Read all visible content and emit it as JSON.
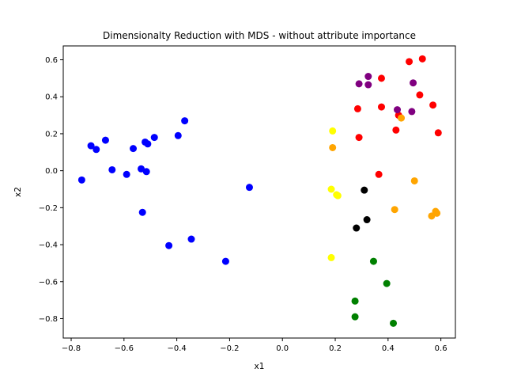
{
  "chart_data": {
    "type": "scatter",
    "title": "Dimensionalty Reduction with MDS - without attribute importance",
    "xlabel": "x1",
    "ylabel": "x2",
    "xlim": [
      -0.83,
      0.655
    ],
    "ylim": [
      -0.905,
      0.675
    ],
    "xticks": [
      -0.8,
      -0.6,
      -0.4,
      -0.2,
      0.0,
      0.2,
      0.4,
      0.6
    ],
    "yticks": [
      -0.8,
      -0.6,
      -0.4,
      -0.2,
      0.0,
      0.2,
      0.4,
      0.6
    ],
    "xtick_labels": [
      "−0.8",
      "−0.6",
      "−0.4",
      "−0.2",
      "0.0",
      "0.2",
      "0.4",
      "0.6"
    ],
    "ytick_labels": [
      "−0.8",
      "−0.6",
      "−0.4",
      "−0.2",
      "0.0",
      "0.2",
      "0.4",
      "0.6"
    ],
    "grid": false,
    "legend": "none",
    "series": [
      {
        "color": "#0000ff",
        "points": [
          [
            -0.76,
            -0.05
          ],
          [
            -0.725,
            0.135
          ],
          [
            -0.705,
            0.115
          ],
          [
            -0.67,
            0.165
          ],
          [
            -0.645,
            0.005
          ],
          [
            -0.59,
            -0.02
          ],
          [
            -0.565,
            0.12
          ],
          [
            -0.535,
            0.01
          ],
          [
            -0.52,
            0.155
          ],
          [
            -0.51,
            0.145
          ],
          [
            -0.485,
            0.18
          ],
          [
            -0.515,
            -0.005
          ],
          [
            -0.53,
            -0.225
          ],
          [
            -0.395,
            0.19
          ],
          [
            -0.37,
            0.27
          ],
          [
            -0.345,
            -0.37
          ],
          [
            -0.43,
            -0.405
          ],
          [
            -0.215,
            -0.49
          ],
          [
            -0.125,
            -0.09
          ]
        ]
      },
      {
        "color": "#ff0000",
        "points": [
          [
            0.53,
            0.605
          ],
          [
            0.48,
            0.59
          ],
          [
            0.375,
            0.5
          ],
          [
            0.52,
            0.41
          ],
          [
            0.57,
            0.355
          ],
          [
            0.375,
            0.345
          ],
          [
            0.285,
            0.335
          ],
          [
            0.44,
            0.3
          ],
          [
            0.43,
            0.22
          ],
          [
            0.59,
            0.205
          ],
          [
            0.29,
            0.18
          ],
          [
            0.365,
            -0.02
          ]
        ]
      },
      {
        "color": "#800080",
        "points": [
          [
            0.325,
            0.51
          ],
          [
            0.29,
            0.47
          ],
          [
            0.325,
            0.465
          ],
          [
            0.495,
            0.475
          ],
          [
            0.435,
            0.33
          ],
          [
            0.49,
            0.32
          ]
        ]
      },
      {
        "color": "#ffa500",
        "points": [
          [
            0.45,
            0.285
          ],
          [
            0.19,
            0.125
          ],
          [
            0.5,
            -0.055
          ],
          [
            0.425,
            -0.21
          ],
          [
            0.58,
            -0.22
          ],
          [
            0.585,
            -0.23
          ],
          [
            0.565,
            -0.245
          ]
        ]
      },
      {
        "color": "#ffff00",
        "points": [
          [
            0.19,
            0.215
          ],
          [
            0.185,
            -0.1
          ],
          [
            0.205,
            -0.13
          ],
          [
            0.21,
            -0.135
          ],
          [
            0.185,
            -0.47
          ]
        ]
      },
      {
        "color": "#000000",
        "points": [
          [
            0.31,
            -0.105
          ],
          [
            0.32,
            -0.265
          ],
          [
            0.28,
            -0.31
          ]
        ]
      },
      {
        "color": "#008000",
        "points": [
          [
            0.345,
            -0.49
          ],
          [
            0.395,
            -0.61
          ],
          [
            0.275,
            -0.705
          ],
          [
            0.275,
            -0.79
          ],
          [
            0.42,
            -0.825
          ]
        ]
      }
    ]
  }
}
